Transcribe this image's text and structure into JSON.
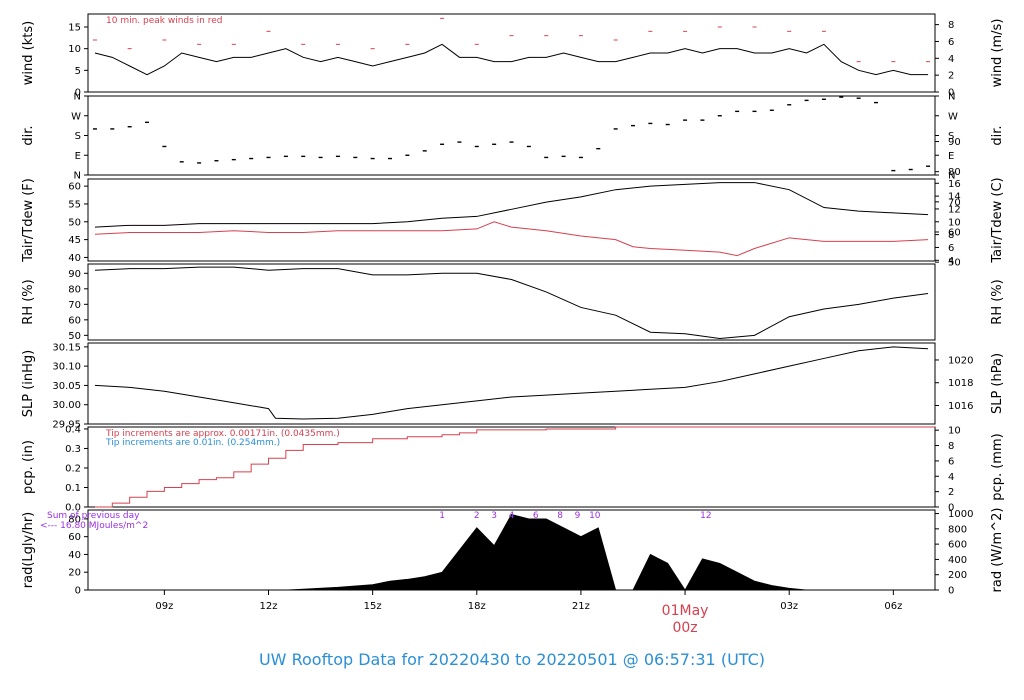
{
  "figure_title": "UW Rooftop Data for  20220430  to  20220501 @ 06:57:31  (UTC)",
  "colors": {
    "black": "#000000",
    "red": "#d6404f",
    "blue": "#2b8fd6",
    "purple": "#9b30e6",
    "title": "#2b8fd6",
    "date": "#d6404f"
  },
  "x_axis": {
    "ticks": [
      "09z",
      "12z",
      "15z",
      "18z",
      "21z",
      "03z",
      "06z"
    ],
    "tick_hours": [
      9,
      12,
      15,
      18,
      21,
      27,
      30
    ],
    "date_label": "01May",
    "date_time_label": "00z",
    "date_hour": 24
  },
  "chart_data": [
    {
      "id": "wind",
      "type": "line",
      "ylabel_left": "wind (kts)",
      "ylabel_right": "wind (m/s)",
      "ylim": [
        0,
        18
      ],
      "left_ticks": [
        0,
        5,
        10,
        15
      ],
      "right_ticks": [
        "0",
        "2",
        "4",
        "6",
        "8"
      ],
      "note": "10 min. peak winds in red",
      "series": [
        {
          "color": "#000000",
          "x": [
            7.0,
            7.5,
            8.0,
            8.5,
            9.0,
            9.5,
            10.0,
            10.5,
            11.0,
            11.5,
            12.0,
            12.5,
            13.0,
            13.5,
            14.0,
            14.5,
            15.0,
            15.5,
            16.0,
            16.5,
            17.0,
            17.5,
            18.0,
            18.5,
            19.0,
            19.5,
            20.0,
            20.5,
            21.0,
            21.5,
            22.0,
            22.5,
            23.0,
            23.5,
            24.0,
            24.5,
            25.0,
            25.5,
            26.0,
            26.5,
            27.0,
            27.5,
            28.0,
            28.5,
            29.0,
            29.5,
            30.0,
            30.5,
            31.0
          ],
          "y": [
            9,
            8,
            6,
            4,
            6,
            9,
            8,
            7,
            8,
            8,
            9,
            10,
            8,
            7,
            8,
            7,
            6,
            7,
            8,
            9,
            11,
            8,
            8,
            7,
            7,
            8,
            8,
            9,
            8,
            7,
            7,
            8,
            9,
            9,
            10,
            9,
            10,
            10,
            9,
            9,
            10,
            9,
            11,
            7,
            5,
            4,
            5,
            4,
            4
          ]
        },
        {
          "name": "10 min. peak winds in red",
          "color": "#d6404f",
          "x": [
            7.0,
            8.0,
            9.0,
            10.0,
            11.0,
            12.0,
            13.0,
            14.0,
            15.0,
            16.0,
            17.0,
            18.0,
            19.0,
            20.0,
            21.0,
            22.0,
            23.0,
            24.0,
            25.0,
            26.0,
            27.0,
            28.0,
            29.0,
            30.0,
            31.0
          ],
          "y": [
            12,
            10,
            12,
            11,
            11,
            14,
            11,
            11,
            10,
            11,
            17,
            11,
            13,
            13,
            13,
            12,
            14,
            14,
            15,
            15,
            14,
            14,
            7,
            7,
            7
          ]
        }
      ]
    },
    {
      "id": "dir",
      "type": "scatter",
      "ylabel_left": "dir.",
      "ylabel_right": "dir.",
      "ylim": [
        0,
        360
      ],
      "tick_values": [
        0,
        90,
        180,
        270,
        360
      ],
      "left_ticks": [
        "N",
        "E",
        "S",
        "W",
        "N"
      ],
      "right_ticks": [
        "N",
        "E",
        "S",
        "W",
        "N"
      ],
      "series": [
        {
          "color": "#000000",
          "x": [
            7.0,
            7.5,
            8.0,
            8.5,
            9.0,
            9.5,
            10.0,
            10.5,
            11.0,
            11.5,
            12.0,
            12.5,
            13.0,
            13.5,
            14.0,
            14.5,
            15.0,
            15.5,
            16.0,
            16.5,
            17.0,
            17.5,
            18.0,
            18.5,
            19.0,
            19.5,
            20.0,
            20.5,
            21.0,
            21.5,
            22.0,
            22.5,
            23.0,
            23.5,
            24.0,
            24.5,
            25.0,
            25.5,
            26.0,
            26.5,
            27.0,
            27.5,
            28.0,
            28.5,
            29.0,
            29.5,
            30.0,
            30.5,
            31.0
          ],
          "y": [
            210,
            210,
            220,
            240,
            130,
            60,
            55,
            65,
            70,
            75,
            80,
            85,
            85,
            80,
            85,
            80,
            75,
            75,
            90,
            110,
            140,
            150,
            130,
            140,
            150,
            130,
            80,
            85,
            80,
            120,
            210,
            225,
            235,
            230,
            250,
            250,
            270,
            290,
            290,
            295,
            320,
            340,
            345,
            355,
            350,
            330,
            20,
            25,
            40
          ]
        }
      ]
    },
    {
      "id": "temp",
      "type": "line",
      "ylabel_left": "Tair/Tdew (F)",
      "ylabel_right": "Tair/Tdew (C)",
      "ylim": [
        39,
        62
      ],
      "left_ticks": [
        40,
        45,
        50,
        55,
        60
      ],
      "right_ticks": [
        "4",
        "6",
        "8",
        "10",
        "12",
        "14",
        "16"
      ],
      "right_tick_values": [
        39.2,
        42.8,
        46.4,
        50.0,
        53.6,
        57.2,
        60.8
      ],
      "series": [
        {
          "color": "#000000",
          "x": [
            7.0,
            8.0,
            9.0,
            10.0,
            11.0,
            12.0,
            13.0,
            14.0,
            15.0,
            16.0,
            17.0,
            18.0,
            19.0,
            20.0,
            21.0,
            22.0,
            23.0,
            24.0,
            25.0,
            26.0,
            27.0,
            28.0,
            29.0,
            30.0,
            31.0
          ],
          "y": [
            48.5,
            49,
            49,
            49.5,
            49.5,
            49.5,
            49.5,
            49.5,
            49.5,
            50,
            51,
            51.5,
            53.5,
            55.5,
            57,
            59,
            60,
            60.5,
            61,
            61,
            59,
            54,
            53,
            52.5,
            52
          ]
        },
        {
          "color": "#d6404f",
          "x": [
            7.0,
            8.0,
            9.0,
            10.0,
            11.0,
            12.0,
            13.0,
            14.0,
            15.0,
            16.0,
            17.0,
            18.0,
            18.5,
            19.0,
            20.0,
            21.0,
            22.0,
            22.5,
            23.0,
            24.0,
            25.0,
            25.5,
            26.0,
            27.0,
            28.0,
            29.0,
            30.0,
            31.0
          ],
          "y": [
            46.5,
            47,
            47,
            47,
            47.5,
            47,
            47,
            47.5,
            47.5,
            47.5,
            47.5,
            48,
            50,
            48.5,
            47.5,
            46,
            45,
            43,
            42.5,
            42,
            41.5,
            40.5,
            42.5,
            45.5,
            44.5,
            44.5,
            44.5,
            45
          ]
        }
      ]
    },
    {
      "id": "rh",
      "type": "line",
      "ylabel_left": "RH (%)",
      "ylabel_right": "RH (%)",
      "ylim": [
        47,
        96
      ],
      "left_ticks": [
        50,
        60,
        70,
        80,
        90
      ],
      "right_ticks": [
        "50",
        "60",
        "70",
        "80",
        "90"
      ],
      "series": [
        {
          "color": "#000000",
          "x": [
            7.0,
            8.0,
            9.0,
            10.0,
            11.0,
            12.0,
            13.0,
            14.0,
            15.0,
            16.0,
            17.0,
            18.0,
            19.0,
            20.0,
            21.0,
            22.0,
            23.0,
            24.0,
            25.0,
            26.0,
            27.0,
            28.0,
            29.0,
            30.0,
            31.0
          ],
          "y": [
            92,
            93,
            93,
            94,
            94,
            92,
            93,
            93,
            89,
            89,
            90,
            90,
            86,
            78,
            68,
            63,
            52,
            51,
            48,
            50,
            62,
            67,
            70,
            74,
            77
          ]
        }
      ]
    },
    {
      "id": "slp",
      "type": "line",
      "ylabel_left": "SLP (inHg)",
      "ylabel_right": "SLP (hPa)",
      "ylim": [
        29.95,
        30.16
      ],
      "left_ticks": [
        29.95,
        30.0,
        30.05,
        30.1,
        30.15
      ],
      "left_tick_labels": [
        "29.95",
        "30.00",
        "30.05",
        "30.10",
        "30.15"
      ],
      "right_ticks": [
        "1016",
        "1018",
        "1020"
      ],
      "right_tick_values": [
        29.998,
        30.057,
        30.116
      ],
      "series": [
        {
          "color": "#000000",
          "x": [
            7.0,
            8.0,
            9.0,
            10.0,
            11.0,
            12.0,
            12.2,
            13.0,
            14.0,
            15.0,
            16.0,
            17.0,
            18.0,
            19.0,
            20.0,
            21.0,
            22.0,
            23.0,
            24.0,
            25.0,
            26.0,
            27.0,
            28.0,
            29.0,
            30.0,
            31.0
          ],
          "y": [
            30.05,
            30.045,
            30.035,
            30.02,
            30.005,
            29.99,
            29.965,
            29.963,
            29.965,
            29.975,
            29.99,
            30.0,
            30.01,
            30.02,
            30.025,
            30.03,
            30.035,
            30.04,
            30.045,
            30.06,
            30.08,
            30.1,
            30.12,
            30.14,
            30.15,
            30.145
          ]
        }
      ]
    },
    {
      "id": "pcp",
      "type": "line",
      "ylabel_left": "pcp. (in)",
      "ylabel_right": "pcp. (mm)",
      "ylim": [
        0,
        0.41
      ],
      "left_ticks": [
        0.0,
        0.1,
        0.2,
        0.3,
        0.4
      ],
      "left_tick_labels": [
        "0.0",
        "0.1",
        "0.2",
        "0.3",
        "0.4"
      ],
      "right_ticks": [
        "0",
        "2",
        "4",
        "6",
        "8",
        "10"
      ],
      "right_tick_values": [
        0,
        0.0787,
        0.1575,
        0.2362,
        0.315,
        0.3937
      ],
      "notes": [
        {
          "text": "Tip increments are approx. 0.00171in. (0.0435mm.)",
          "color": "#d6404f"
        },
        {
          "text": "Tip increments are 0.01in. (0.254mm.)",
          "color": "#2b8fd6"
        }
      ],
      "series": [
        {
          "color": "#d6404f",
          "x": [
            7.0,
            7.5,
            8.0,
            8.5,
            9.0,
            9.5,
            10.0,
            10.5,
            11.0,
            11.5,
            12.0,
            12.5,
            13.0,
            14.0,
            15.0,
            16.0,
            17.0,
            17.5,
            18.0,
            20.0,
            22.0,
            24.0,
            27.0,
            31.0
          ],
          "y": [
            0.0,
            0.02,
            0.05,
            0.08,
            0.1,
            0.12,
            0.14,
            0.15,
            0.18,
            0.22,
            0.25,
            0.29,
            0.32,
            0.33,
            0.35,
            0.36,
            0.37,
            0.38,
            0.395,
            0.4,
            0.41,
            0.41,
            0.41,
            0.41
          ]
        }
      ]
    },
    {
      "id": "rad",
      "type": "area",
      "ylabel_left": "rad(Lgly/hr)",
      "ylabel_right": "rad (W/m^2)",
      "ylim": [
        0,
        90
      ],
      "left_ticks": [
        0,
        20,
        40,
        60,
        80
      ],
      "right_ticks": [
        "0",
        "200",
        "400",
        "600",
        "800",
        "1000"
      ],
      "right_tick_values": [
        0,
        17.2,
        34.4,
        51.6,
        68.8,
        86.0
      ],
      "notes": [
        {
          "text": "Sum of previous day",
          "color": "#9b30e6"
        },
        {
          "text": "<--- 16.80 MJoules/m^2",
          "color": "#9b30e6"
        }
      ],
      "hour_marks": [
        "1",
        "2",
        "3",
        "4",
        "6",
        "8",
        "9",
        "10",
        "12"
      ],
      "hour_mark_x": [
        17.0,
        18.0,
        18.5,
        19.0,
        19.7,
        20.4,
        20.9,
        21.4,
        24.6
      ],
      "series": [
        {
          "color": "#000000",
          "x": [
            12.5,
            13.0,
            14.0,
            15.0,
            15.5,
            16.0,
            16.5,
            17.0,
            17.5,
            18.0,
            18.5,
            19.0,
            19.5,
            20.0,
            20.5,
            21.0,
            21.5,
            22.0,
            22.5,
            23.0,
            23.5,
            24.0,
            24.5,
            25.0,
            25.5,
            26.0,
            26.5,
            27.0,
            27.5
          ],
          "y": [
            0,
            1,
            3,
            6,
            10,
            12,
            15,
            20,
            45,
            70,
            50,
            85,
            80,
            80,
            70,
            60,
            70,
            0,
            0,
            40,
            30,
            0,
            35,
            30,
            20,
            10,
            5,
            2,
            0
          ]
        }
      ]
    }
  ]
}
